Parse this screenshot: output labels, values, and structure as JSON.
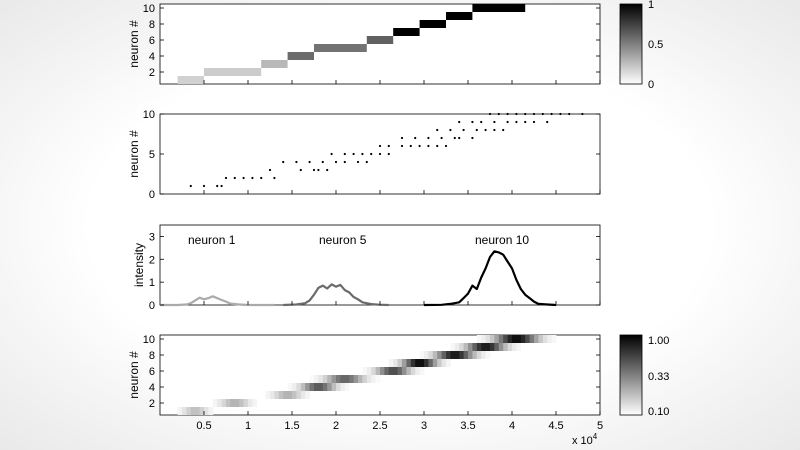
{
  "chart_data": [
    {
      "type": "heatmap",
      "ylabel": "neuron #",
      "xlim": [
        0,
        50000
      ],
      "ylim": [
        0.5,
        10.5
      ],
      "yticks": [
        "2",
        "4",
        "6",
        "8",
        "10"
      ],
      "colorbar": {
        "ticks": [
          "0",
          "0.5",
          "1"
        ],
        "range": [
          0,
          1
        ]
      },
      "segments": [
        {
          "neuron": 1,
          "x_start": 2000,
          "x_end": 5000,
          "value": 0.18
        },
        {
          "neuron": 2,
          "x_start": 5000,
          "x_end": 11500,
          "value": 0.2
        },
        {
          "neuron": 3,
          "x_start": 11500,
          "x_end": 14500,
          "value": 0.28
        },
        {
          "neuron": 4,
          "x_start": 14500,
          "x_end": 17500,
          "value": 0.58
        },
        {
          "neuron": 5,
          "x_start": 17500,
          "x_end": 23500,
          "value": 0.55
        },
        {
          "neuron": 6,
          "x_start": 23500,
          "x_end": 26500,
          "value": 0.62
        },
        {
          "neuron": 7,
          "x_start": 26500,
          "x_end": 29500,
          "value": 1.0
        },
        {
          "neuron": 8,
          "x_start": 29500,
          "x_end": 32500,
          "value": 1.0
        },
        {
          "neuron": 9,
          "x_start": 32500,
          "x_end": 35500,
          "value": 1.0
        },
        {
          "neuron": 10,
          "x_start": 35500,
          "x_end": 41500,
          "value": 1.0
        }
      ]
    },
    {
      "type": "scatter",
      "ylabel": "neuron #",
      "xlim": [
        0,
        50000
      ],
      "ylim": [
        0,
        10
      ],
      "yticks": [
        "0",
        "5",
        "10"
      ],
      "series": [
        {
          "neuron": 1,
          "x": [
            3500,
            5000,
            6500,
            7000
          ]
        },
        {
          "neuron": 2,
          "x": [
            7500,
            8500,
            9500,
            10500,
            11500,
            13000
          ]
        },
        {
          "neuron": 3,
          "x": [
            12500,
            16000,
            17500,
            18000,
            19000
          ]
        },
        {
          "neuron": 4,
          "x": [
            14000,
            15500,
            17000,
            18500,
            20000,
            21000,
            22500,
            23500
          ]
        },
        {
          "neuron": 5,
          "x": [
            19500,
            21000,
            22000,
            23000,
            24000,
            25000,
            26000
          ]
        },
        {
          "neuron": 6,
          "x": [
            25000,
            26000,
            27500,
            28500,
            29500,
            30500,
            31500,
            32500
          ]
        },
        {
          "neuron": 7,
          "x": [
            27500,
            29000,
            30500,
            32000,
            33500,
            34000,
            35500
          ]
        },
        {
          "neuron": 8,
          "x": [
            31500,
            33000,
            34500,
            36000,
            37000,
            38000,
            39000
          ]
        },
        {
          "neuron": 9,
          "x": [
            34000,
            35500,
            36500,
            38000,
            39500,
            40500,
            41500,
            42500,
            44000
          ]
        },
        {
          "neuron": 10,
          "x": [
            37500,
            38500,
            39500,
            40500,
            41500,
            42500,
            43500,
            44500,
            45500,
            46500,
            48000
          ]
        }
      ]
    },
    {
      "type": "line",
      "ylabel": "intensity",
      "xlim": [
        0,
        50000
      ],
      "ylim": [
        0,
        3.5
      ],
      "yticks": [
        "0",
        "1",
        "2",
        "3"
      ],
      "annotations": [
        {
          "text": "neuron 1",
          "x": 5000,
          "y": 3.0
        },
        {
          "text": "neuron 5",
          "x": 19000,
          "y": 3.0
        },
        {
          "text": "neuron 10",
          "x": 36000,
          "y": 3.0
        }
      ],
      "series": [
        {
          "color": "#aaaaaa",
          "x": [
            0,
            2000,
            3000,
            3500,
            4000,
            4500,
            5000,
            5500,
            6000,
            6500,
            7000,
            7500,
            8000,
            9000,
            10000,
            11000,
            13000
          ],
          "y": [
            0,
            0,
            0.02,
            0.08,
            0.2,
            0.32,
            0.25,
            0.3,
            0.38,
            0.3,
            0.22,
            0.15,
            0.06,
            0.02,
            0,
            0,
            0
          ]
        },
        {
          "color": "#6a6a6a",
          "x": [
            14000,
            15500,
            16500,
            17000,
            17500,
            18000,
            18500,
            19000,
            19500,
            20000,
            20500,
            21000,
            21500,
            22000,
            22500,
            23000,
            24000,
            25000,
            26000
          ],
          "y": [
            0,
            0.02,
            0.08,
            0.2,
            0.45,
            0.75,
            0.85,
            0.72,
            0.9,
            0.8,
            0.88,
            0.65,
            0.55,
            0.35,
            0.25,
            0.12,
            0.04,
            0.01,
            0
          ]
        },
        {
          "color": "#000000",
          "x": [
            30000,
            32000,
            33000,
            34000,
            34500,
            35000,
            35500,
            36000,
            36500,
            37000,
            37500,
            38000,
            38500,
            39000,
            39500,
            40000,
            40500,
            41000,
            41500,
            42000,
            42500,
            43000,
            44000,
            45000
          ],
          "y": [
            0,
            0.01,
            0.05,
            0.12,
            0.3,
            0.5,
            0.85,
            0.7,
            1.2,
            1.6,
            2.1,
            2.35,
            2.3,
            2.2,
            1.9,
            1.6,
            1.1,
            0.7,
            0.45,
            0.3,
            0.15,
            0.05,
            0.02,
            0
          ]
        }
      ]
    },
    {
      "type": "heatmap",
      "ylabel": "neuron #",
      "xlabel_multiplier": "x 10",
      "xlabel_exponent": "4",
      "xlim": [
        0,
        50000
      ],
      "ylim": [
        0.5,
        10.5
      ],
      "xticks": [
        {
          "value": 5000,
          "label": "0.5"
        },
        {
          "value": 10000,
          "label": "1"
        },
        {
          "value": 15000,
          "label": "1.5"
        },
        {
          "value": 20000,
          "label": "2"
        },
        {
          "value": 25000,
          "label": "2.5"
        },
        {
          "value": 30000,
          "label": "3"
        },
        {
          "value": 35000,
          "label": "3.5"
        },
        {
          "value": 40000,
          "label": "4"
        },
        {
          "value": 45000,
          "label": "4.5"
        },
        {
          "value": 50000,
          "label": "5"
        }
      ],
      "yticks": [
        "2",
        "4",
        "6",
        "8",
        "10"
      ],
      "colorbar": {
        "ticks": [
          "0.10",
          "0.33",
          "1.00"
        ],
        "range": [
          0.1,
          1.0
        ]
      },
      "bands": [
        {
          "neuron": 1,
          "center": 4000,
          "width": 3000,
          "peak": 0.25
        },
        {
          "neuron": 2,
          "center": 8500,
          "width": 3500,
          "peak": 0.3
        },
        {
          "neuron": 3,
          "center": 14500,
          "width": 3500,
          "peak": 0.3
        },
        {
          "neuron": 4,
          "center": 18000,
          "width": 4000,
          "peak": 0.65
        },
        {
          "neuron": 5,
          "center": 21000,
          "width": 4500,
          "peak": 0.6
        },
        {
          "neuron": 6,
          "center": 26500,
          "width": 4000,
          "peak": 0.7
        },
        {
          "neuron": 7,
          "center": 29500,
          "width": 4000,
          "peak": 0.95
        },
        {
          "neuron": 8,
          "center": 33500,
          "width": 4500,
          "peak": 0.9
        },
        {
          "neuron": 9,
          "center": 37000,
          "width": 4500,
          "peak": 0.9
        },
        {
          "neuron": 10,
          "center": 40500,
          "width": 5000,
          "peak": 0.95
        }
      ]
    }
  ]
}
